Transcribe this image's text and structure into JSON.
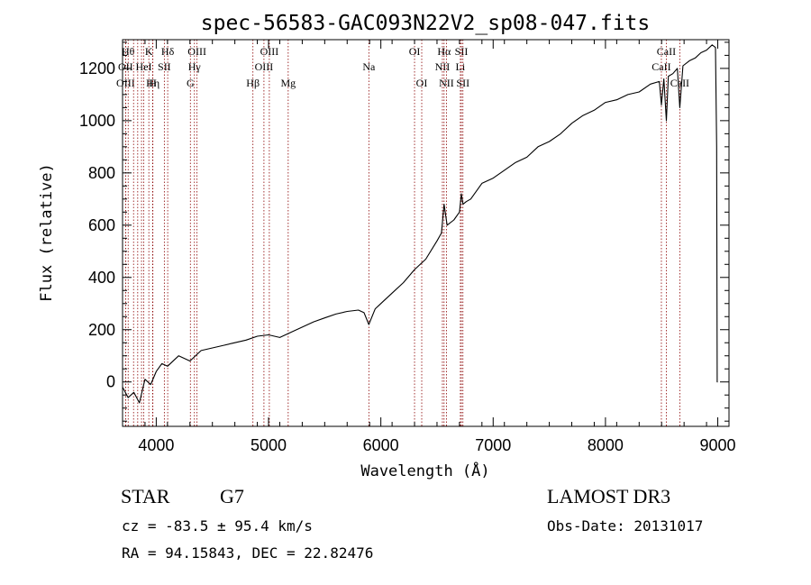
{
  "chart_data": {
    "type": "line",
    "title": "spec-56583-GAC093N22V2_sp08-047.fits",
    "xlabel": "Wavelength (Å)",
    "ylabel": "Flux (relative)",
    "xlim": [
      3700,
      9100
    ],
    "ylim": [
      -170,
      1310
    ],
    "x_ticks": [
      4000,
      5000,
      6000,
      7000,
      8000,
      9000
    ],
    "x_tick_labels": [
      "4000",
      "5000",
      "6000",
      "7000",
      "8000",
      "9000"
    ],
    "y_ticks": [
      0,
      200,
      400,
      600,
      800,
      1000,
      1200
    ],
    "y_tick_labels": [
      "0",
      "200",
      "400",
      "600",
      "800",
      "1000",
      "1200"
    ],
    "grid": false,
    "line_color": "#000000",
    "marker_color": "#8b0000",
    "series": [
      {
        "name": "flux",
        "x": [
          3700,
          3750,
          3800,
          3850,
          3900,
          3950,
          4000,
          4050,
          4100,
          4200,
          4300,
          4400,
          4500,
          4600,
          4700,
          4800,
          4900,
          5000,
          5100,
          5200,
          5300,
          5400,
          5500,
          5600,
          5700,
          5800,
          5850,
          5893,
          5950,
          6000,
          6100,
          6200,
          6300,
          6400,
          6500,
          6540,
          6563,
          6590,
          6650,
          6700,
          6717,
          6731,
          6760,
          6800,
          6900,
          7000,
          7100,
          7200,
          7300,
          7400,
          7500,
          7600,
          7700,
          7800,
          7900,
          8000,
          8100,
          8200,
          8300,
          8400,
          8480,
          8498,
          8520,
          8542,
          8560,
          8600,
          8640,
          8662,
          8690,
          8750,
          8800,
          8850,
          8900,
          8950,
          8980,
          8990,
          8995,
          9000
        ],
        "y": [
          -20,
          -60,
          -40,
          -80,
          10,
          -10,
          40,
          70,
          60,
          100,
          80,
          120,
          130,
          140,
          150,
          160,
          175,
          180,
          170,
          190,
          210,
          230,
          245,
          260,
          270,
          275,
          265,
          220,
          280,
          300,
          340,
          380,
          430,
          470,
          540,
          570,
          680,
          600,
          620,
          650,
          720,
          680,
          690,
          700,
          760,
          780,
          810,
          840,
          860,
          900,
          920,
          950,
          990,
          1020,
          1040,
          1070,
          1080,
          1100,
          1110,
          1140,
          1150,
          1060,
          1160,
          1000,
          1170,
          1180,
          1200,
          1050,
          1210,
          1230,
          1240,
          1260,
          1270,
          1290,
          1280,
          900,
          0,
          0
        ]
      }
    ],
    "line_markers": [
      {
        "x": 3750,
        "label": "Hθ",
        "row": 1
      },
      {
        "x": 3727,
        "label": "OII",
        "row": 2
      },
      {
        "x": 3727,
        "label": "OIII",
        "row": 3
      },
      {
        "x": 3798,
        "label": "",
        "row": 0
      },
      {
        "x": 3835,
        "label": "",
        "row": 0
      },
      {
        "x": 3869,
        "label": "",
        "row": 0
      },
      {
        "x": 3889,
        "label": "HeI",
        "row": 2
      },
      {
        "x": 3934,
        "label": "K",
        "row": 1
      },
      {
        "x": 3970,
        "label": "Hη",
        "row": 3
      },
      {
        "x": 3968,
        "label": "H",
        "row": 3
      },
      {
        "x": 4072,
        "label": "SII",
        "row": 2
      },
      {
        "x": 4102,
        "label": "Hδ",
        "row": 1
      },
      {
        "x": 4304,
        "label": "G",
        "row": 3
      },
      {
        "x": 4340,
        "label": "Hγ",
        "row": 2
      },
      {
        "x": 4363,
        "label": "OIII",
        "row": 1
      },
      {
        "x": 4861,
        "label": "Hβ",
        "row": 3
      },
      {
        "x": 4959,
        "label": "OIII",
        "row": 2
      },
      {
        "x": 5007,
        "label": "OIII",
        "row": 1
      },
      {
        "x": 5175,
        "label": "Mg",
        "row": 3
      },
      {
        "x": 5893,
        "label": "Na",
        "row": 2
      },
      {
        "x": 6300,
        "label": "OI",
        "row": 1
      },
      {
        "x": 6364,
        "label": "OI",
        "row": 3
      },
      {
        "x": 6548,
        "label": "NII",
        "row": 2
      },
      {
        "x": 6563,
        "label": "Hα",
        "row": 1
      },
      {
        "x": 6584,
        "label": "NII",
        "row": 3
      },
      {
        "x": 6708,
        "label": "Li",
        "row": 2
      },
      {
        "x": 6717,
        "label": "SII",
        "row": 1
      },
      {
        "x": 6731,
        "label": "SII",
        "row": 3
      },
      {
        "x": 8498,
        "label": "CaII",
        "row": 2
      },
      {
        "x": 8542,
        "label": "CaII",
        "row": 1
      },
      {
        "x": 8662,
        "label": "CaII",
        "row": 3
      }
    ]
  },
  "info": {
    "object_class": "STAR",
    "subclass": "G7",
    "survey": "LAMOST DR3",
    "velocity": "cz = -83.5 ± 95.4 km/s",
    "obs_date": "Obs-Date: 20131017",
    "coords": "RA =  94.15843, DEC =  22.82476"
  }
}
